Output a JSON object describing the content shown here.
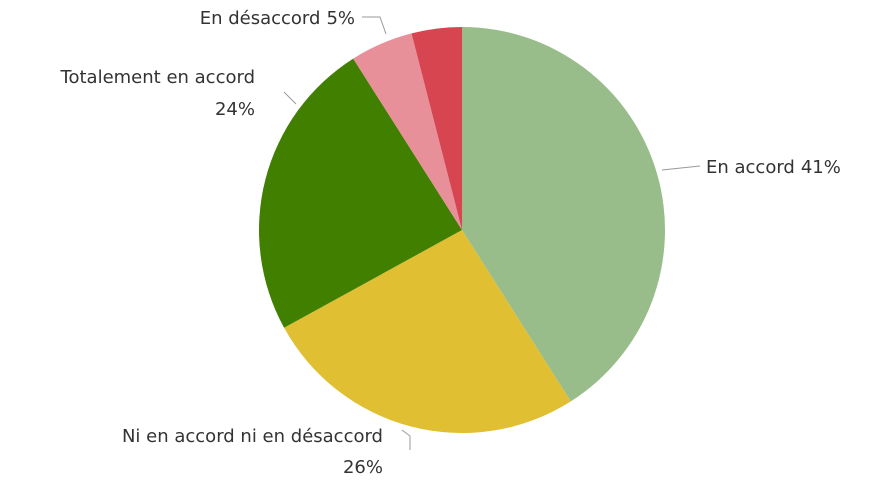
{
  "chart_data": {
    "type": "pie",
    "categories": [
      "En accord",
      "Ni en accord ni en désaccord",
      "Totalement en accord",
      "En désaccord",
      null
    ],
    "values": [
      41,
      26,
      24,
      5,
      4
    ],
    "value_labels": [
      "41%",
      "26%",
      "24%",
      "5%",
      null
    ],
    "colors": [
      "#98bd8a",
      "#e0c032",
      "#417f00",
      "#e8909a",
      "#d64550"
    ]
  }
}
